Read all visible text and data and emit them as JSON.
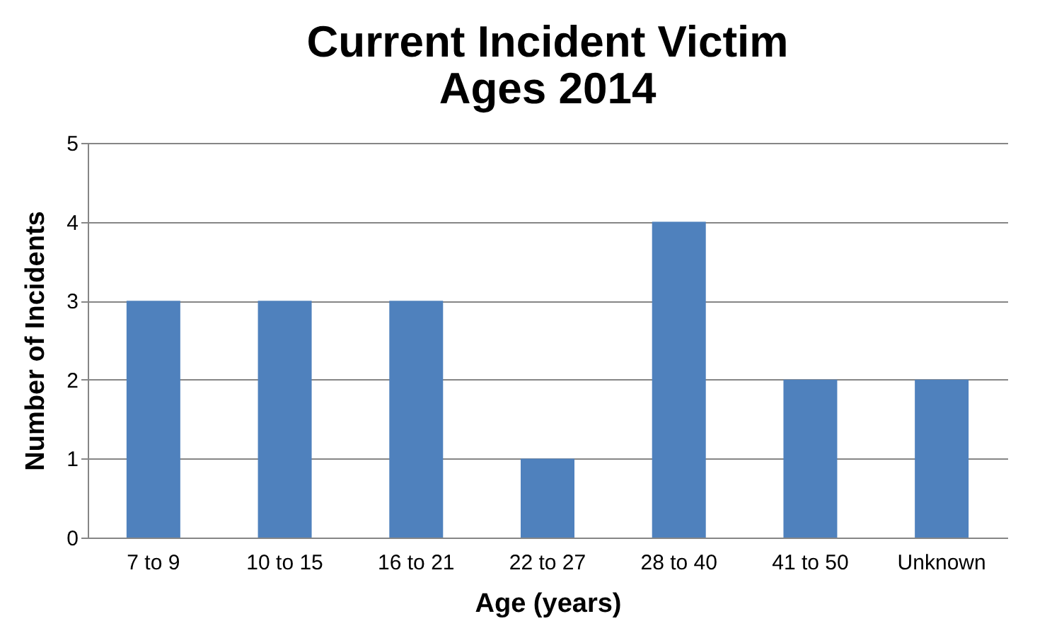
{
  "chart_data": {
    "type": "bar",
    "title": "Current Incident Victim\nAges 2014",
    "xlabel": "Age (years)",
    "ylabel": "Number of Incidents",
    "categories": [
      "7 to 9",
      "10 to 15",
      "16 to 21",
      "22 to 27",
      "28 to 40",
      "41 to 50",
      "Unknown"
    ],
    "values": [
      3,
      3,
      3,
      1,
      4,
      2,
      2
    ],
    "color": "#4f81bd",
    "ylim": [
      0,
      5
    ],
    "yticks": [
      0,
      1,
      2,
      3,
      4,
      5
    ],
    "grid": "y"
  }
}
